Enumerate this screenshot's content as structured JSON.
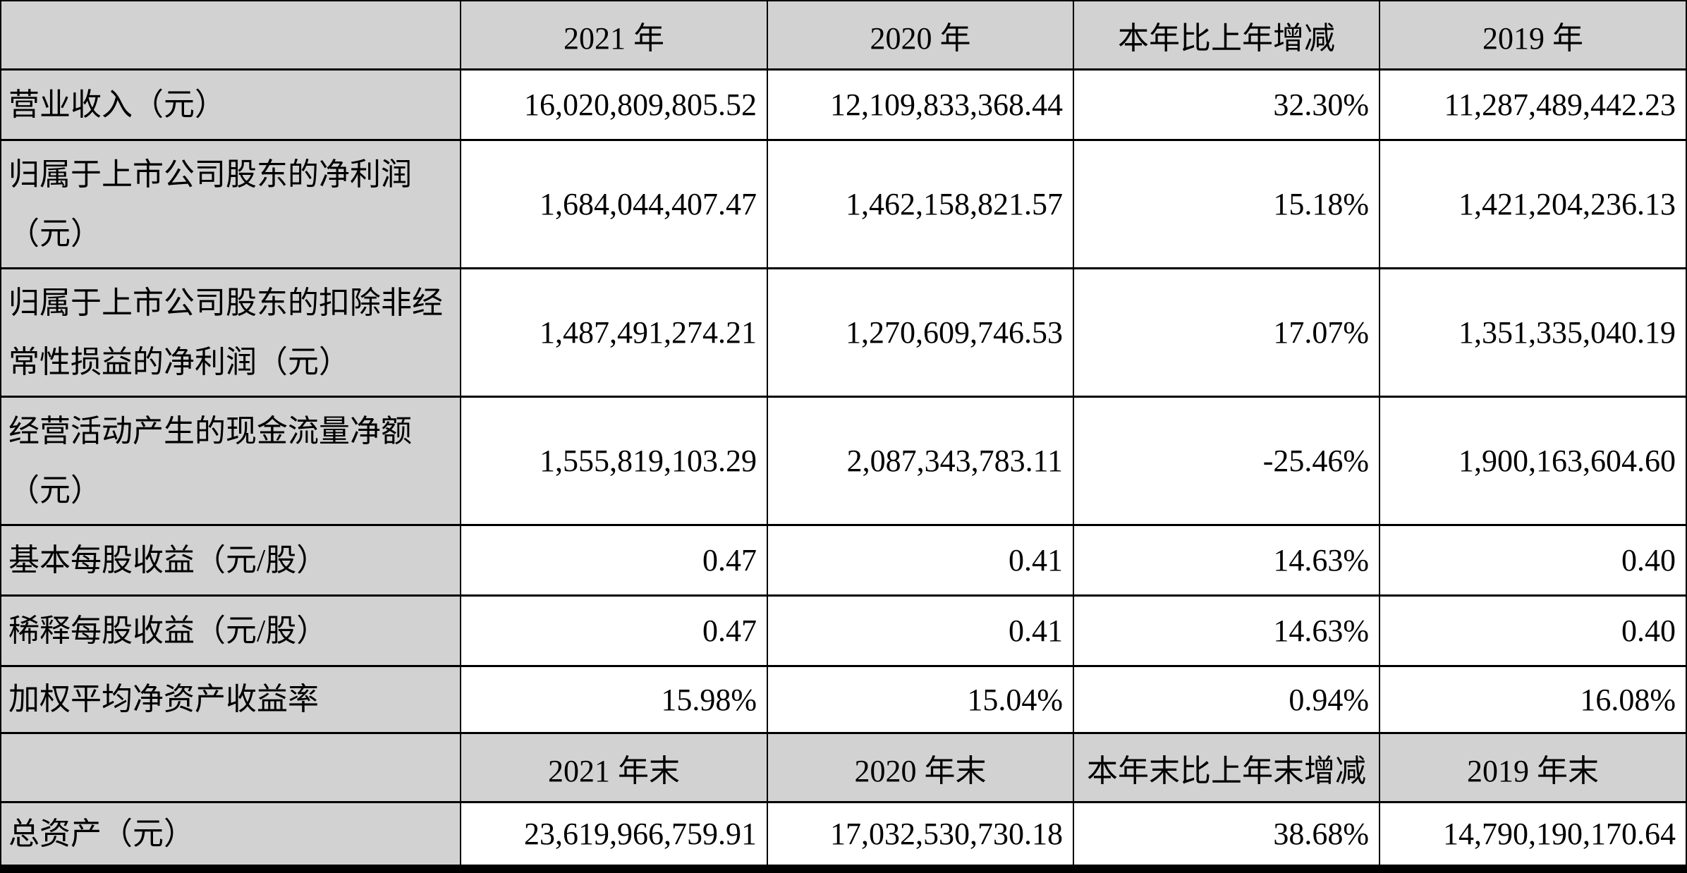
{
  "colors": {
    "header_bg": "#d2d2d2",
    "label_bg": "#d2d2d2",
    "cell_bg": "#ffffff",
    "border": "#000000",
    "text": "#000000"
  },
  "table": {
    "section1": {
      "headers": {
        "col0": "",
        "col1": "2021 年",
        "col2": "2020 年",
        "col3": "本年比上年增减",
        "col4": "2019 年"
      },
      "rows": [
        {
          "label": "营业收入（元）",
          "y2021": "16,020,809,805.52",
          "y2020": "12,109,833,368.44",
          "change": "32.30%",
          "y2019": "11,287,489,442.23"
        },
        {
          "label": "归属于上市公司股东的净利润\n（元）",
          "y2021": "1,684,044,407.47",
          "y2020": "1,462,158,821.57",
          "change": "15.18%",
          "y2019": "1,421,204,236.13"
        },
        {
          "label": "归属于上市公司股东的扣除非经\n常性损益的净利润（元）",
          "y2021": "1,487,491,274.21",
          "y2020": "1,270,609,746.53",
          "change": "17.07%",
          "y2019": "1,351,335,040.19"
        },
        {
          "label": "经营活动产生的现金流量净额\n（元）",
          "y2021": "1,555,819,103.29",
          "y2020": "2,087,343,783.11",
          "change": "-25.46%",
          "y2019": "1,900,163,604.60"
        },
        {
          "label": "基本每股收益（元/股）",
          "y2021": "0.47",
          "y2020": "0.41",
          "change": "14.63%",
          "y2019": "0.40"
        },
        {
          "label": "稀释每股收益（元/股）",
          "y2021": "0.47",
          "y2020": "0.41",
          "change": "14.63%",
          "y2019": "0.40"
        },
        {
          "label": "加权平均净资产收益率",
          "y2021": "15.98%",
          "y2020": "15.04%",
          "change": "0.94%",
          "y2019": "16.08%"
        }
      ]
    },
    "section2": {
      "headers": {
        "col0": "",
        "col1": "2021 年末",
        "col2": "2020 年末",
        "col3": "本年末比上年末增减",
        "col4": "2019 年末"
      },
      "rows": [
        {
          "label": "总资产（元）",
          "y2021": "23,619,966,759.91",
          "y2020": "17,032,530,730.18",
          "change": "38.68%",
          "y2019": "14,790,190,170.64"
        }
      ]
    }
  }
}
